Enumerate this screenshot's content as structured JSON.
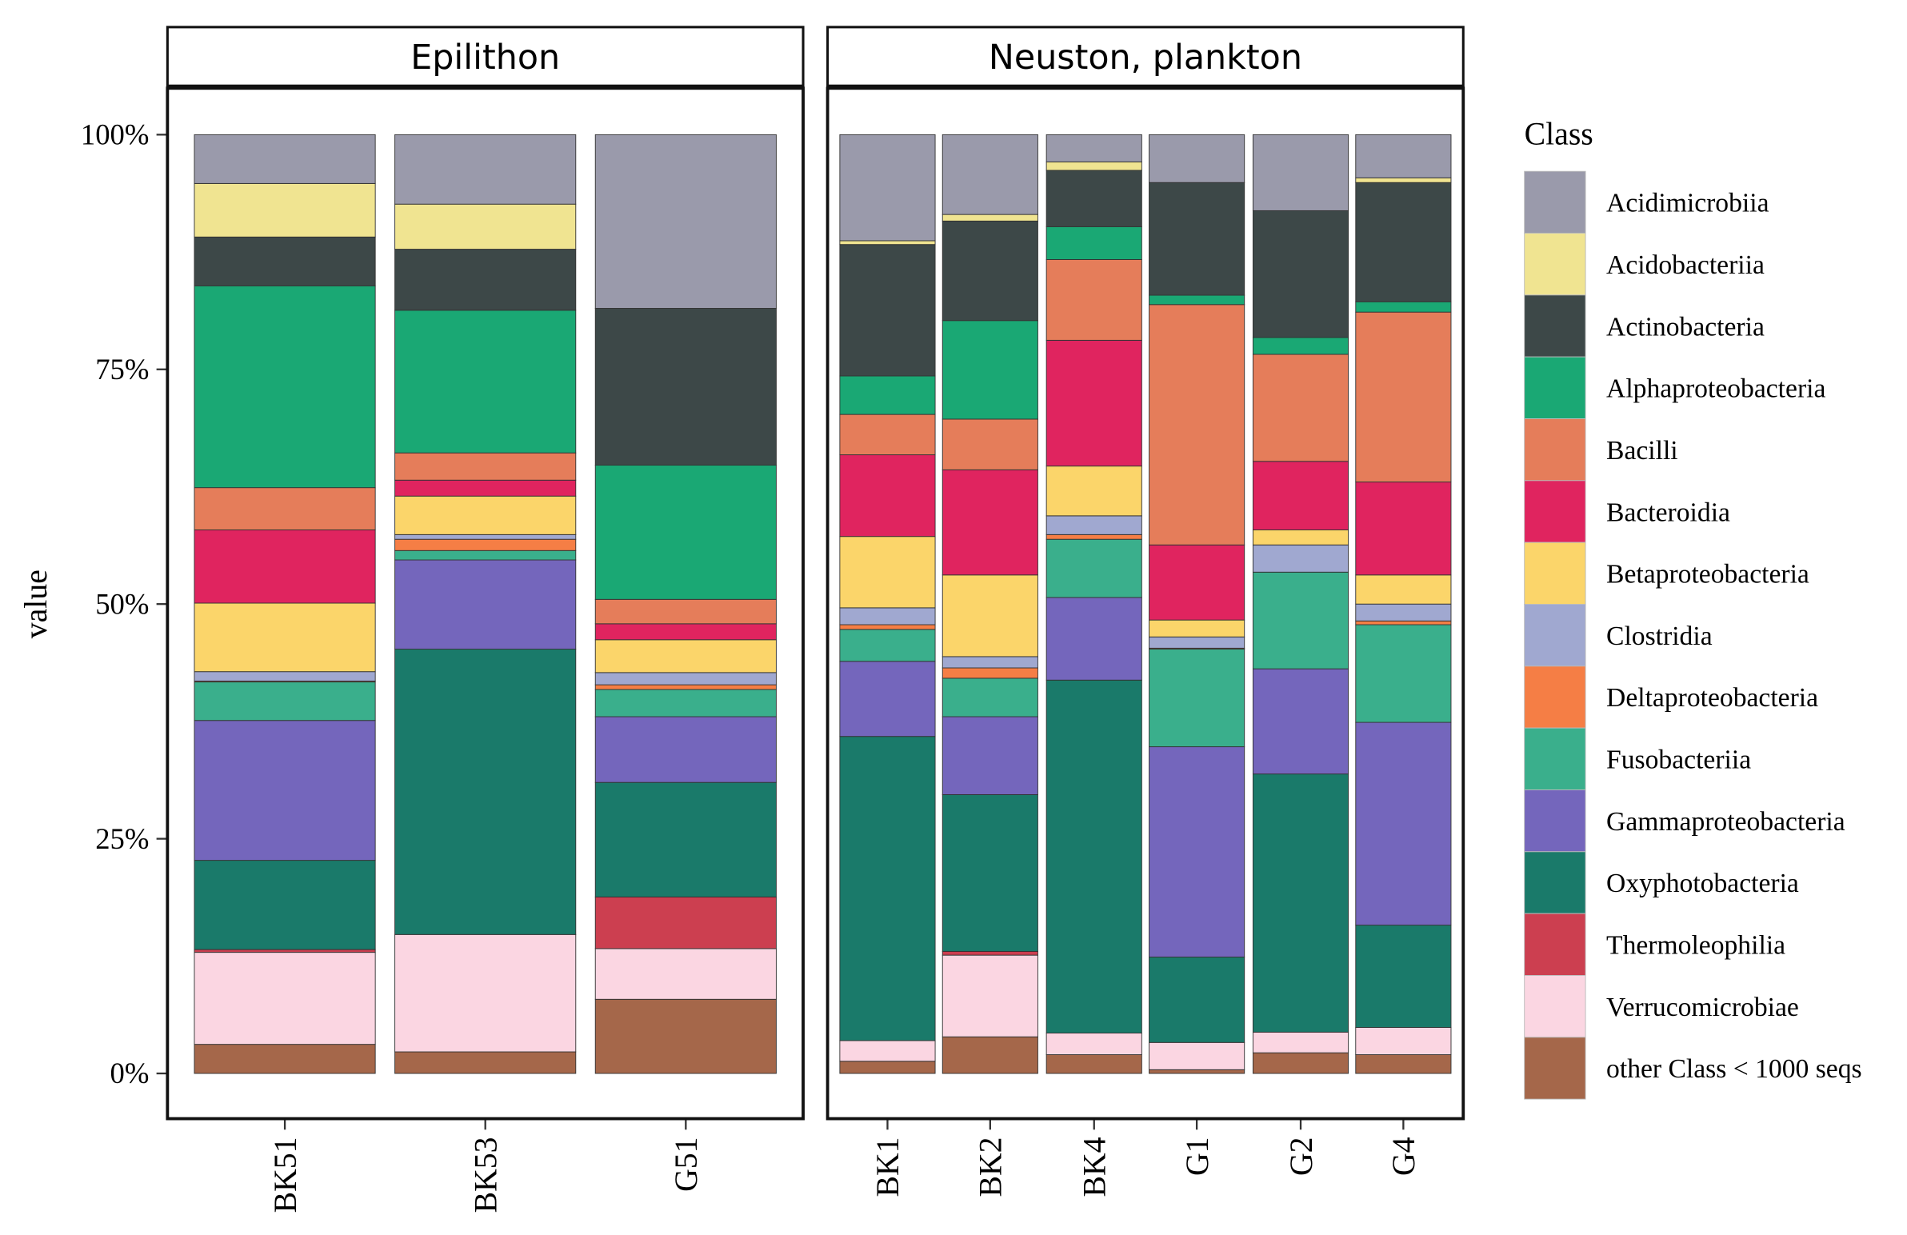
{
  "chart_data": {
    "type": "bar",
    "stacked": true,
    "ylabel": "value",
    "xlabel": "",
    "ylim": [
      0,
      100
    ],
    "y_ticks": [
      "0%",
      "25%",
      "50%",
      "75%",
      "100%"
    ],
    "legend": {
      "title": "Class",
      "placement": "right"
    },
    "classes": [
      {
        "name": "Acidimicrobiia",
        "color": "#9a9aab"
      },
      {
        "name": "Acidobacteriia",
        "color": "#f0e491"
      },
      {
        "name": "Actinobacteria",
        "color": "#3d4848"
      },
      {
        "name": "Alphaproteobacteria",
        "color": "#1aa874"
      },
      {
        "name": "Bacilli",
        "color": "#e57d5a"
      },
      {
        "name": "Bacteroidia",
        "color": "#e0245f"
      },
      {
        "name": "Betaproteobacteria",
        "color": "#fbd56a"
      },
      {
        "name": "Clostridia",
        "color": "#a0a8d0"
      },
      {
        "name": "Deltaproteobacteria",
        "color": "#f57e45"
      },
      {
        "name": "Fusobacteriia",
        "color": "#3aaf8c"
      },
      {
        "name": "Gammaproteobacteria",
        "color": "#7466bc"
      },
      {
        "name": "Oxyphotobacteria",
        "color": "#1a7a6a"
      },
      {
        "name": "Thermoleophilia",
        "color": "#cc3f50"
      },
      {
        "name": "Verrucomicrobiae",
        "color": "#fbd6e2"
      },
      {
        "name": "other Class < 1000 seqs",
        "color": "#a5674a"
      }
    ],
    "panels": [
      {
        "title": "Epilithon",
        "samples": [
          {
            "name": "BK51",
            "values": [
              5.2,
              5.7,
              5.2,
              21.5,
              4.5,
              7.8,
              7.3,
              1.0,
              0.1,
              4.1,
              14.9,
              9.5,
              0.3,
              9.8,
              3.1
            ]
          },
          {
            "name": "BK53",
            "values": [
              7.4,
              4.8,
              6.5,
              15.2,
              2.9,
              1.7,
              4.1,
              0.5,
              1.2,
              1.0,
              9.5,
              30.4,
              0,
              12.5,
              2.3
            ]
          },
          {
            "name": "G51",
            "values": [
              18.5,
              0,
              16.7,
              14.3,
              2.6,
              1.7,
              3.5,
              1.3,
              0.5,
              2.9,
              7.0,
              12.2,
              5.5,
              5.4,
              7.9
            ]
          }
        ]
      },
      {
        "title": "Neuston, plankton",
        "samples": [
          {
            "name": "BK1",
            "values": [
              11.3,
              0.4,
              14.0,
              4.1,
              4.3,
              8.7,
              7.6,
              1.8,
              0.5,
              3.4,
              8.0,
              32.4,
              0,
              2.2,
              1.3
            ]
          },
          {
            "name": "BK2",
            "values": [
              8.5,
              0.7,
              10.6,
              10.5,
              5.4,
              11.2,
              8.7,
              1.2,
              1.1,
              4.1,
              8.3,
              16.7,
              0.4,
              8.7,
              3.9
            ]
          },
          {
            "name": "BK4",
            "values": [
              2.9,
              0.9,
              6.0,
              3.5,
              8.6,
              13.4,
              5.3,
              2.0,
              0.5,
              6.2,
              8.8,
              37.6,
              0,
              2.3,
              2.0
            ]
          },
          {
            "name": "G1",
            "values": [
              5.1,
              0,
              12.0,
              1.0,
              25.6,
              8.0,
              1.8,
              1.2,
              0.1,
              10.4,
              22.4,
              9.1,
              0,
              2.9,
              0.4
            ]
          },
          {
            "name": "G2",
            "values": [
              8.1,
              0,
              13.5,
              1.8,
              11.4,
              7.3,
              1.6,
              2.9,
              0,
              10.3,
              11.2,
              27.5,
              0,
              2.2,
              2.2
            ]
          },
          {
            "name": "G4",
            "values": [
              4.6,
              0.5,
              12.7,
              1.1,
              18.1,
              9.9,
              3.1,
              1.8,
              0.4,
              10.4,
              21.6,
              10.9,
              0,
              2.9,
              2.0
            ]
          }
        ]
      }
    ]
  }
}
